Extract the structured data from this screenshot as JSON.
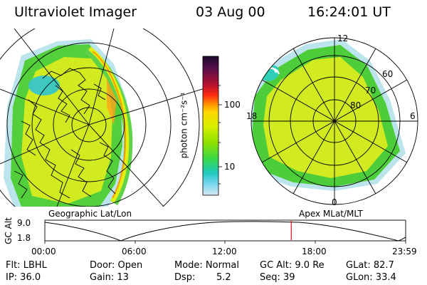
{
  "header": {
    "instrument": "Ultraviolet Imager",
    "date": "03 Aug 00",
    "time": "16:24:01 UT"
  },
  "colorbar": {
    "unit_label": "photon cm⁻²s⁻¹",
    "tick_100": "100",
    "tick_10": "10",
    "colors": [
      "#1a0a2e",
      "#5a0f4a",
      "#b01030",
      "#ff2a10",
      "#ff8a00",
      "#ffd500",
      "#d9ef00",
      "#8fe000",
      "#38d84a",
      "#20c9c2",
      "#79d7ee",
      "#d9e7f4"
    ]
  },
  "left_map": {
    "caption": "Geographic Lat/Lon"
  },
  "right_map": {
    "caption": "Apex MLat/MLT",
    "mlt_labels": {
      "top": "12",
      "right": "6",
      "bottom": "0",
      "left": "18"
    },
    "lat_labels": {
      "l60": "60",
      "l70": "70",
      "l80": "80"
    }
  },
  "timeline": {
    "y_axis_label": "GC Alt",
    "y_ticks": {
      "top": "9.0",
      "bottom": "1.8"
    },
    "x_ticks": [
      "00:00",
      "06:00",
      "12:00",
      "18:00",
      "23:59"
    ],
    "current_time_fraction": 0.683,
    "marker_color": "#dd1010"
  },
  "footer": {
    "flt": "Flt: LBHL",
    "ip": "IP: 36.0",
    "door": "Door: Open",
    "gain": "Gain: 13",
    "mode": "Mode: Normal",
    "dsp_label": "Dsp:",
    "dsp_value": "5.2",
    "gc_alt": "GC Alt: 9.0 Re",
    "seq": "Seq: 39",
    "glat": "GLat: 82.7",
    "glon": "GLon: 33.4"
  }
}
